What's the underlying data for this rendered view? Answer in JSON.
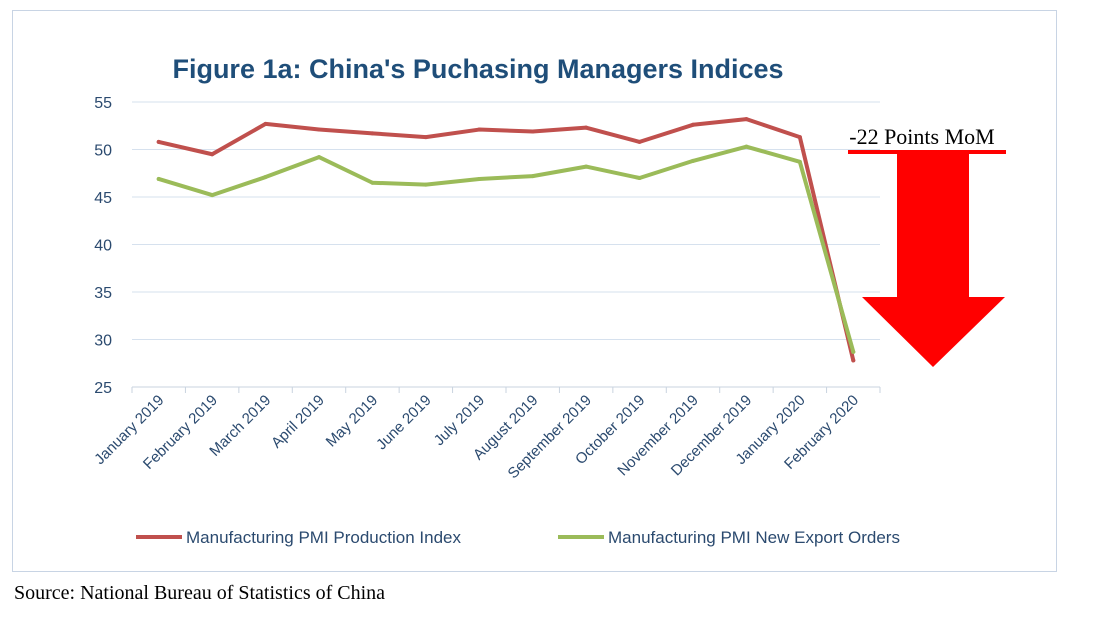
{
  "chart_data": {
    "type": "line",
    "title": "Figure 1a: China's Puchasing Managers Indices",
    "xlabel": "",
    "ylabel": "",
    "ylim": [
      25,
      55
    ],
    "yticks": [
      25,
      30,
      35,
      40,
      45,
      50,
      55
    ],
    "grid": true,
    "legend_position": "bottom",
    "categories": [
      "January 2019",
      "February 2019",
      "March 2019",
      "April 2019",
      "May 2019",
      "June 2019",
      "July 2019",
      "August 2019",
      "September 2019",
      "October 2019",
      "November 2019",
      "December 2019",
      "January 2020",
      "February 2020"
    ],
    "series": [
      {
        "name": "Manufacturing PMI Production Index",
        "color": "#c0504d",
        "values": [
          50.8,
          49.5,
          52.7,
          52.1,
          51.7,
          51.3,
          52.1,
          51.9,
          52.3,
          50.8,
          52.6,
          53.2,
          51.3,
          27.8
        ]
      },
      {
        "name": "Manufacturing PMI New Export Orders",
        "color": "#9bbb59",
        "values": [
          46.9,
          45.2,
          47.1,
          49.2,
          46.5,
          46.3,
          46.9,
          47.2,
          48.2,
          47.0,
          48.8,
          50.3,
          48.7,
          28.7
        ]
      }
    ],
    "annotations": [
      {
        "text": "-22 Points MoM",
        "arrow_color": "#ff0000"
      }
    ]
  },
  "footer": {
    "source": "Source: National Bureau of Statistics of China"
  }
}
